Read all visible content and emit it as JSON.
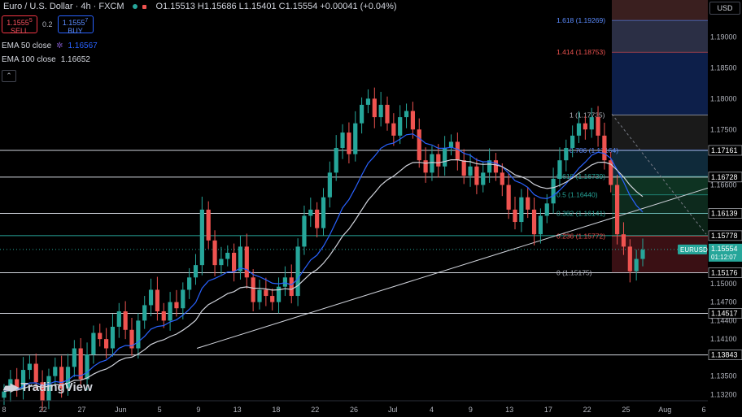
{
  "header": {
    "symbol": "Euro / U.S. Dollar · 4h · FXCM",
    "ohlc": "O1.15513 H1.15686 L1.15401 C1.15554 +0.00041 (+0.04%)"
  },
  "trade": {
    "sell_price": "1.1555",
    "sell_sup": "5",
    "sell_label": "SELL",
    "spread": "0.2",
    "buy_price": "1.1555",
    "buy_sup": "7",
    "buy_label": "BUY"
  },
  "indicators": {
    "ema50_label": "EMA 50 close",
    "ema50_value": "1.16567",
    "ema100_label": "EMA 100 close",
    "ema100_value": "1.16652"
  },
  "currency": "USD",
  "logo_text": "TradingView",
  "colors": {
    "up": "#26a69a",
    "down": "#ef5350",
    "ema50": "#2962ff",
    "ema100": "#d1d4dc"
  },
  "chart_data": {
    "type": "candlestick",
    "ylim": [
      1.131,
      1.196
    ],
    "price_ticks": [
      "1.19000",
      "1.18500",
      "1.18000",
      "1.17500",
      "1.16600",
      "1.15000",
      "1.14700",
      "1.14400",
      "1.14100",
      "1.13500",
      "1.13200"
    ],
    "date_ticks": [
      "8",
      "22",
      "27",
      "Jun",
      "5",
      "9",
      "13",
      "18",
      "22",
      "26",
      "Jul",
      "4",
      "9",
      "13",
      "17",
      "22",
      "25",
      "Aug",
      "6"
    ],
    "horizontal_levels": [
      {
        "price": 1.17161,
        "label": "1.17161"
      },
      {
        "price": 1.16728,
        "label": "1.16728"
      },
      {
        "price": 1.16139,
        "label": "1.16139"
      },
      {
        "price": 1.15778,
        "label": "1.15778",
        "color": "#26a69a"
      },
      {
        "price": 1.15176,
        "label": "1.15176"
      },
      {
        "price": 1.14517,
        "label": "1.14517"
      },
      {
        "price": 1.13843,
        "label": "1.13843"
      }
    ],
    "current_price": {
      "label": "EURUSD",
      "price": "1.15554",
      "countdown": "01:12:07"
    },
    "fibonacci": [
      {
        "label": "1.618 (1.19269)",
        "price": 1.19269,
        "color": "#5b8cff"
      },
      {
        "label": "1.414 (1.18753)",
        "price": 1.18753,
        "color": "#ef5350"
      },
      {
        "label": "1 (1.17735)",
        "price": 1.17735,
        "color": "#b2b5be"
      },
      {
        "label": "0.786 (1.17164)",
        "price": 1.17164,
        "color": "#5b8cff"
      },
      {
        "label": "0.618 (1.16739)",
        "price": 1.16739,
        "color": "#26a69a"
      },
      {
        "label": "0.5 (1.16440)",
        "price": 1.1644,
        "color": "#26a69a"
      },
      {
        "label": "0.382 (1.16141)",
        "price": 1.16141,
        "color": "#26a69a"
      },
      {
        "label": "0.236 (1.15772)",
        "price": 1.15772,
        "color": "#ef5350"
      },
      {
        "label": "0 (1.15175)",
        "price": 1.15175,
        "color": "#b2b5be"
      }
    ],
    "closes": [
      1.1325,
      1.1345,
      1.133,
      1.136,
      1.137,
      1.134,
      1.131,
      1.135,
      1.1365,
      1.133,
      1.1365,
      1.1395,
      1.1345,
      1.1385,
      1.142,
      1.141,
      1.1395,
      1.143,
      1.1455,
      1.1425,
      1.1395,
      1.144,
      1.1465,
      1.149,
      1.1455,
      1.144,
      1.147,
      1.146,
      1.149,
      1.151,
      1.153,
      1.162,
      1.157,
      1.153,
      1.154,
      1.155,
      1.152,
      1.156,
      1.151,
      1.147,
      1.149,
      1.148,
      1.147,
      1.1495,
      1.151,
      1.148,
      1.156,
      1.161,
      1.162,
      1.159,
      1.164,
      1.168,
      1.172,
      1.1745,
      1.171,
      1.176,
      1.179,
      1.18,
      1.177,
      1.179,
      1.176,
      1.174,
      1.177,
      1.178,
      1.175,
      1.17,
      1.168,
      1.171,
      1.169,
      1.172,
      1.173,
      1.17,
      1.1675,
      1.169,
      1.166,
      1.168,
      1.17,
      1.168,
      1.166,
      1.162,
      1.16,
      1.164,
      1.162,
      1.158,
      1.161,
      1.163,
      1.167,
      1.17,
      1.172,
      1.174,
      1.176,
      1.175,
      1.177,
      1.174,
      1.17,
      1.166,
      1.158,
      1.156,
      1.152,
      1.154,
      1.1555
    ]
  }
}
